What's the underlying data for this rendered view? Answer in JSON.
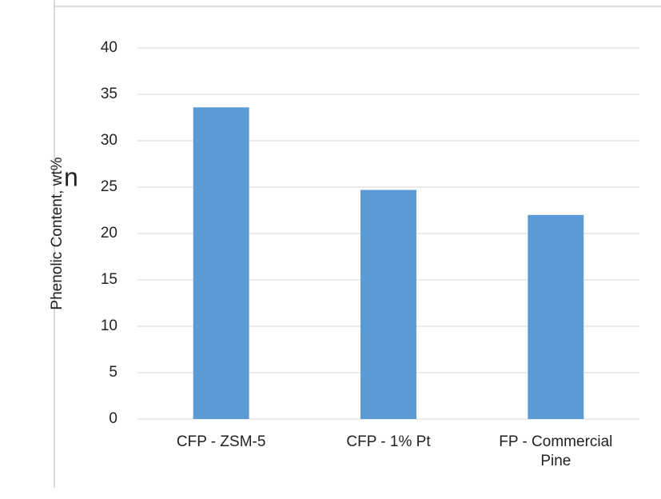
{
  "chart_data": {
    "type": "bar",
    "annotations": [
      "n"
    ],
    "y_label": "Phenolic Content, wt%",
    "categories": [
      "CFP - ZSM-5",
      "CFP - 1% Pt",
      "FP - Commercial Pine"
    ],
    "values": [
      33.6,
      24.7,
      22.0
    ],
    "color": "#5b9bd5",
    "ylim": [
      0,
      40
    ],
    "yticks": [
      0,
      5,
      10,
      15,
      20,
      25,
      30,
      35,
      40
    ],
    "grid": true
  }
}
